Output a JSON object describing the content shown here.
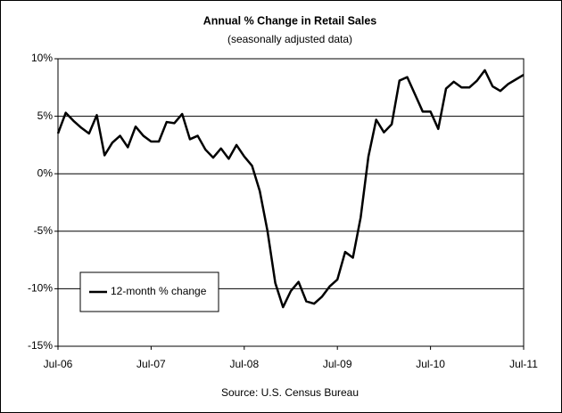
{
  "chart_data": {
    "type": "line",
    "title": "Annual %  Change in Retail Sales",
    "subtitle": "(seasonally adjusted data)",
    "source": "Source: U.S. Census Bureau",
    "categories": [
      "Jul-06",
      null,
      null,
      null,
      null,
      null,
      null,
      null,
      null,
      null,
      null,
      null,
      "Jul-07",
      null,
      null,
      null,
      null,
      null,
      null,
      null,
      null,
      null,
      null,
      null,
      "Jul-08",
      null,
      null,
      null,
      null,
      null,
      null,
      null,
      null,
      null,
      null,
      null,
      "Jul-09",
      null,
      null,
      null,
      null,
      null,
      null,
      null,
      null,
      null,
      null,
      null,
      "Jul-10",
      null,
      null,
      null,
      null,
      null,
      null,
      null,
      null,
      null,
      null,
      null,
      "Jul-11"
    ],
    "series": [
      {
        "name": "12-month % change",
        "color": "#000000",
        "values": [
          3.5,
          5.3,
          4.6,
          4.0,
          3.5,
          5.1,
          1.6,
          2.7,
          3.3,
          2.3,
          4.1,
          3.3,
          2.8,
          2.8,
          4.5,
          4.4,
          5.2,
          3.0,
          3.3,
          2.1,
          1.4,
          2.2,
          1.3,
          2.5,
          1.5,
          0.7,
          -1.5,
          -5.0,
          -9.5,
          -11.6,
          -10.2,
          -9.4,
          -11.1,
          -11.3,
          -10.7,
          -9.8,
          -9.2,
          -6.8,
          -7.3,
          -3.8,
          1.5,
          4.7,
          3.6,
          4.3,
          8.1,
          8.4,
          6.9,
          5.4,
          5.4,
          3.9,
          7.4,
          8.0,
          7.5,
          7.5,
          8.1,
          9.0,
          7.6,
          7.2,
          7.8,
          8.2,
          8.6
        ]
      }
    ],
    "ylim": [
      -15,
      10
    ],
    "yticks": [
      {
        "value": -15,
        "label": "-15%"
      },
      {
        "value": -10,
        "label": "-10%"
      },
      {
        "value": -5,
        "label": "-5%"
      },
      {
        "value": 0,
        "label": "0%"
      },
      {
        "value": 5,
        "label": "5%"
      },
      {
        "value": 10,
        "label": "10%"
      }
    ],
    "grid": true,
    "legend": "lower left"
  }
}
